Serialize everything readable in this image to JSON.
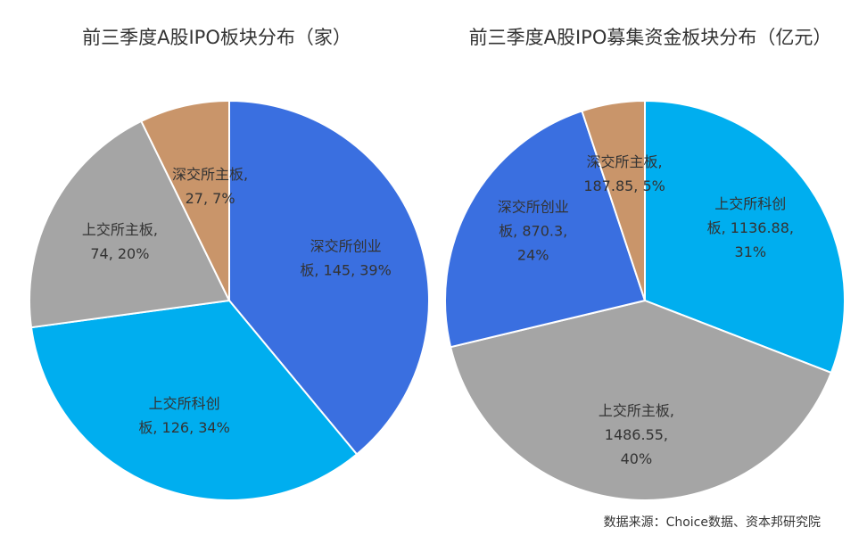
{
  "chart_data": [
    {
      "type": "pie",
      "title": "前三季度A股IPO板块分布（家）",
      "slices": [
        {
          "label": "深交所创业板",
          "value": 145,
          "percent": "39%",
          "color": "#3A6FE0",
          "text_lines": [
            "深交所创业",
            "板, 145, 39%"
          ]
        },
        {
          "label": "上交所科创板",
          "value": 126,
          "percent": "34%",
          "color": "#00AEEF",
          "text_lines": [
            "上交所科创",
            "板, 126, 34%"
          ]
        },
        {
          "label": "上交所主板",
          "value": 74,
          "percent": "20%",
          "color": "#A5A5A5",
          "text_lines": [
            "上交所主板,",
            "74, 20%"
          ]
        },
        {
          "label": "深交所主板",
          "value": 27,
          "percent": "7%",
          "color": "#C9956A",
          "text_lines": [
            "深交所主板,",
            "27, 7%"
          ]
        }
      ]
    },
    {
      "type": "pie",
      "title": "前三季度A股IPO募集资金板块分布（亿元）",
      "slices": [
        {
          "label": "上交所科创板",
          "value": 1136.88,
          "percent": "31%",
          "color": "#00AEEF",
          "text_lines": [
            "上交所科创",
            "板, 1136.88,",
            "31%"
          ]
        },
        {
          "label": "上交所主板",
          "value": 1486.55,
          "percent": "40%",
          "color": "#A5A5A5",
          "text_lines": [
            "上交所主板,",
            "1486.55,",
            "40%"
          ]
        },
        {
          "label": "深交所创业板",
          "value": 870.3,
          "percent": "24%",
          "color": "#3A6FE0",
          "text_lines": [
            "深交所创业",
            "板, 870.3,",
            "24%"
          ]
        },
        {
          "label": "深交所主板",
          "value": 187.85,
          "percent": "5%",
          "color": "#C9956A",
          "text_lines": [
            "深交所主板,",
            "187.85, 5%"
          ]
        }
      ]
    }
  ],
  "source_note": "数据来源：Choice数据、资本邦研究院"
}
